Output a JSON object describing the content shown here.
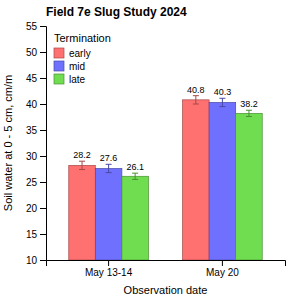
{
  "chart_data": {
    "type": "bar",
    "title": "Field 7e Slug Study 2024",
    "xlabel": "Observation date",
    "ylabel": "Soil water at 0 - 5 cm, cm/m",
    "legend_title": "Termination",
    "categories": [
      "May 13-14",
      "May 20"
    ],
    "series": [
      {
        "name": "early",
        "color": "#FF7070",
        "values": [
          28.2,
          40.8
        ],
        "errors": [
          0.8,
          0.8
        ]
      },
      {
        "name": "mid",
        "color": "#7070FF",
        "values": [
          27.6,
          40.3
        ],
        "errors": [
          0.8,
          0.8
        ]
      },
      {
        "name": "late",
        "color": "#70DD50",
        "values": [
          26.1,
          38.2
        ],
        "errors": [
          0.6,
          0.6
        ]
      }
    ],
    "ylim": [
      10,
      55
    ],
    "yticks": [
      10,
      15,
      20,
      25,
      30,
      35,
      40,
      45,
      50,
      55
    ],
    "grid": false,
    "legend": "upper left",
    "data_labels": true
  }
}
